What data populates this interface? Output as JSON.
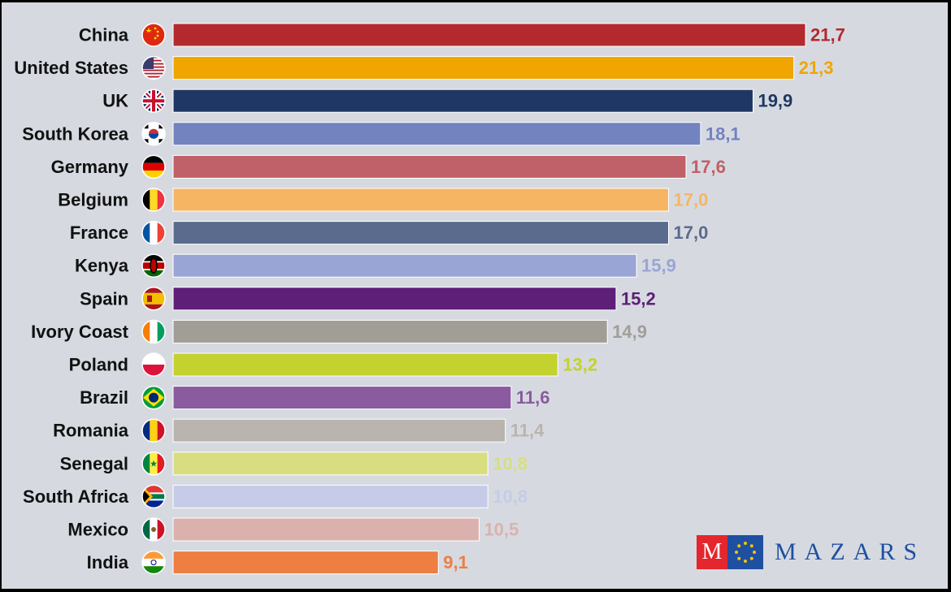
{
  "chart_data": {
    "type": "bar",
    "orientation": "horizontal",
    "title": "",
    "xlabel": "",
    "ylabel": "",
    "xlim": [
      0,
      21.7
    ],
    "grid": false,
    "legend": "none",
    "categories": [
      "China",
      "United States",
      "UK",
      "South Korea",
      "Germany",
      "Belgium",
      "France",
      "Kenya",
      "Spain",
      "Ivory Coast",
      "Poland",
      "Brazil",
      "Romania",
      "Senegal",
      "South Africa",
      "Mexico",
      "India"
    ],
    "values": [
      21.7,
      21.3,
      19.9,
      18.1,
      17.6,
      17.0,
      17.0,
      15.9,
      15.2,
      14.9,
      13.2,
      11.6,
      11.4,
      10.8,
      10.8,
      10.5,
      9.1
    ],
    "value_labels": [
      "21,7",
      "21,3",
      "19,9",
      "18,1",
      "17,6",
      "17,0",
      "17,0",
      "15,9",
      "15,2",
      "14,9",
      "13,2",
      "11,6",
      "11,4",
      "10,8",
      "10,8",
      "10,5",
      "9,1"
    ],
    "colors": [
      "#b3292e",
      "#f0a500",
      "#1f3764",
      "#7383c0",
      "#c06068",
      "#f6b563",
      "#5b6b8e",
      "#98a5d5",
      "#5e1f78",
      "#a19d97",
      "#c3d22e",
      "#8a5b9f",
      "#bab4ae",
      "#d8de80",
      "#c6cce8",
      "#dbb1ae",
      "#ee7e42"
    ],
    "flags": [
      "china-flag-icon",
      "usa-flag-icon",
      "uk-flag-icon",
      "south-korea-flag-icon",
      "germany-flag-icon",
      "belgium-flag-icon",
      "france-flag-icon",
      "kenya-flag-icon",
      "spain-flag-icon",
      "ivory-coast-flag-icon",
      "poland-flag-icon",
      "brazil-flag-icon",
      "romania-flag-icon",
      "senegal-flag-icon",
      "south-africa-flag-icon",
      "mexico-flag-icon",
      "india-flag-icon"
    ]
  },
  "logo": {
    "m": "M",
    "text": "MAZARS"
  }
}
